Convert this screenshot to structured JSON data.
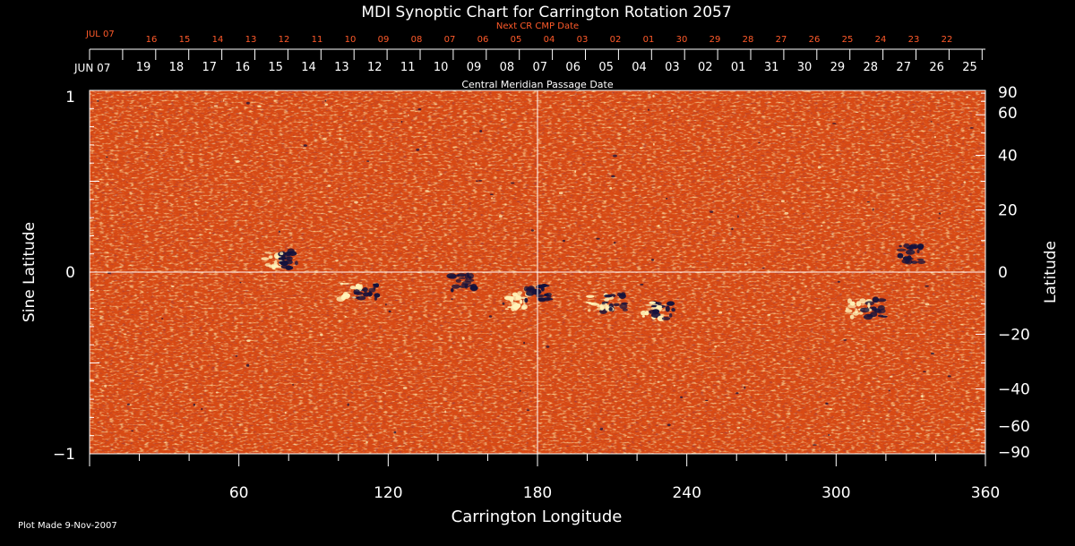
{
  "chart_data": {
    "type": "heatmap",
    "title": "MDI Synoptic Chart for Carrington Rotation 2057",
    "top_label": "Central Meridian Passage Date",
    "next_cr_label": "Next CR CMP Date",
    "next_cr_month": "JUL 07",
    "next_cr_days": [
      "16",
      "15",
      "14",
      "13",
      "12",
      "11",
      "10",
      "09",
      "08",
      "07",
      "06",
      "05",
      "04",
      "03",
      "02",
      "01",
      "30",
      "29",
      "28",
      "27",
      "26",
      "25",
      "24",
      "23",
      "22"
    ],
    "cmp_month": "JUN 07",
    "cmp_days": [
      "19",
      "18",
      "17",
      "16",
      "15",
      "14",
      "13",
      "12",
      "11",
      "10",
      "09",
      "08",
      "07",
      "06",
      "05",
      "04",
      "03",
      "02",
      "01",
      "31",
      "30",
      "29",
      "28",
      "27",
      "26",
      "25"
    ],
    "xlabel": "Carrington Longitude",
    "ylabel_left": "Sine Latitude",
    "ylabel_right": "Latitude",
    "xlim": [
      0,
      360
    ],
    "ylim": [
      -1,
      1
    ],
    "x_ticks": [
      "60",
      "120",
      "180",
      "240",
      "300",
      "360"
    ],
    "y_ticks_left": [
      "1",
      "0",
      "−1"
    ],
    "y_ticks_right": [
      "90",
      "60",
      "40",
      "20",
      "0",
      "−20",
      "−40",
      "−60",
      "−90"
    ],
    "y_ticks_right_values": [
      90,
      60,
      40,
      20,
      0,
      -20,
      -40,
      -60,
      -90
    ],
    "footer": "Plot Made  9-Nov-2007",
    "colors": {
      "background": "#000000",
      "field": "#d84a14",
      "positive": "#fff2b8",
      "negative": "#14123c",
      "axis": "#ffffff",
      "next_cr": "#ff5a2a"
    },
    "active_regions": [
      {
        "lon": 77,
        "sinlat": 0.07,
        "polarity": "mixed"
      },
      {
        "lon": 108,
        "sinlat": -0.1,
        "polarity": "mixed"
      },
      {
        "lon": 150,
        "sinlat": -0.06,
        "polarity": "negative"
      },
      {
        "lon": 172,
        "sinlat": -0.16,
        "polarity": "positive"
      },
      {
        "lon": 180,
        "sinlat": -0.11,
        "polarity": "negative"
      },
      {
        "lon": 208,
        "sinlat": -0.17,
        "polarity": "mixed"
      },
      {
        "lon": 228,
        "sinlat": -0.21,
        "polarity": "mixed"
      },
      {
        "lon": 312,
        "sinlat": -0.2,
        "polarity": "mixed"
      },
      {
        "lon": 330,
        "sinlat": 0.1,
        "polarity": "negative"
      }
    ]
  }
}
